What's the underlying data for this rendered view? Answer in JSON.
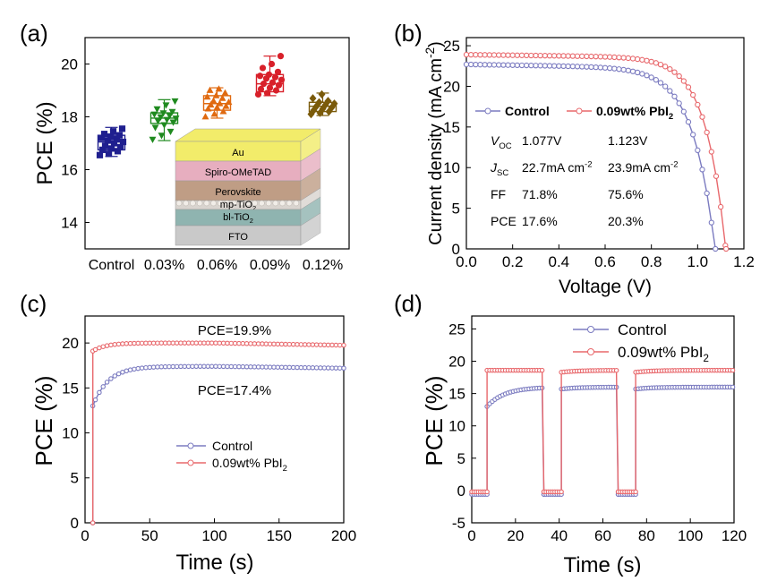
{
  "figure": {
    "panel_labels": [
      "(a)",
      "(b)",
      "(c)",
      "(d)"
    ]
  },
  "chart_data": [
    {
      "panel": "(a)",
      "type": "box",
      "ylabel": "PCE (%)",
      "xlabel": "",
      "ylim": [
        13,
        21
      ],
      "yticks": [
        14,
        16,
        18,
        20
      ],
      "categories": [
        "Control",
        "0.03%",
        "0.06%",
        "0.09%",
        "0.12%"
      ],
      "boxes": [
        {
          "category": "Control",
          "color": "#1f1f8f",
          "marker": "square",
          "min": 16.5,
          "q1": 16.75,
          "median": 17.05,
          "q3": 17.3,
          "max": 17.6,
          "points": [
            16.55,
            16.6,
            16.7,
            16.75,
            16.8,
            16.85,
            16.9,
            17.0,
            17.05,
            17.1,
            17.15,
            17.2,
            17.25,
            17.3,
            17.35,
            17.45,
            17.55
          ]
        },
        {
          "category": "0.03%",
          "color": "#1f8a1f",
          "marker": "triangle-down",
          "min": 17.1,
          "q1": 17.75,
          "median": 17.95,
          "q3": 18.15,
          "max": 18.65,
          "points": [
            17.15,
            17.3,
            17.45,
            17.6,
            17.7,
            17.8,
            17.85,
            17.9,
            17.95,
            18.0,
            18.05,
            18.1,
            18.15,
            18.2,
            18.3,
            18.45,
            18.6
          ]
        },
        {
          "category": "0.06%",
          "color": "#e06a10",
          "marker": "triangle-up",
          "min": 17.95,
          "q1": 18.25,
          "median": 18.5,
          "q3": 18.8,
          "max": 19.1,
          "points": [
            18.0,
            18.1,
            18.2,
            18.3,
            18.35,
            18.4,
            18.45,
            18.5,
            18.55,
            18.6,
            18.7,
            18.75,
            18.8,
            18.9,
            19.0,
            19.05
          ]
        },
        {
          "category": "0.09%",
          "color": "#d8202a",
          "marker": "circle",
          "min": 18.8,
          "q1": 18.95,
          "median": 19.25,
          "q3": 19.6,
          "max": 20.3,
          "points": [
            18.85,
            18.9,
            19.0,
            19.05,
            19.1,
            19.2,
            19.25,
            19.3,
            19.4,
            19.45,
            19.5,
            19.55,
            19.6,
            19.7,
            19.85,
            20.0,
            20.3
          ]
        },
        {
          "category": "0.12%",
          "color": "#7a5a0a",
          "marker": "diamond",
          "min": 18.05,
          "q1": 18.2,
          "median": 18.4,
          "q3": 18.55,
          "max": 18.9,
          "points": [
            18.1,
            18.15,
            18.2,
            18.25,
            18.3,
            18.35,
            18.4,
            18.45,
            18.5,
            18.55,
            18.6,
            18.7,
            18.85
          ]
        }
      ],
      "inset_layers": [
        {
          "label": "Au",
          "color": "#f2ec6a"
        },
        {
          "label": "Spiro-OMeTAD",
          "color": "#e7aebf"
        },
        {
          "label": "Perovskite",
          "color": "#bf9d85"
        },
        {
          "label": "mp-TiO",
          "sub": "2",
          "color": "#d9d4cf"
        },
        {
          "label": "bl-TiO",
          "sub": "2",
          "color": "#8fb4b0"
        },
        {
          "label": "FTO",
          "color": "#c9c9c9"
        }
      ]
    },
    {
      "panel": "(b)",
      "type": "line",
      "xlabel": "Voltage (V)",
      "ylabel": "Current density (mA cm",
      "ylabel_sup": "-2",
      "ylabel_end": ")",
      "xlim": [
        0,
        1.2
      ],
      "ylim": [
        0,
        26
      ],
      "xticks": [
        0.0,
        0.2,
        0.4,
        0.6,
        0.8,
        1.0,
        1.2
      ],
      "xtick_labels": [
        "0.0",
        "0.2",
        "0.4",
        "0.6",
        "0.8",
        "1.0",
        "1.2"
      ],
      "yticks": [
        0,
        5,
        10,
        15,
        20,
        25
      ],
      "series": [
        {
          "name": "Control",
          "color": "#7b7bc0",
          "jsc": 22.7,
          "voc": 1.077,
          "shape": 10.5,
          "slope": 0.45
        },
        {
          "name": "0.09wt% PbI",
          "name_sub": "2",
          "color": "#e8686c",
          "jsc": 23.9,
          "voc": 1.123,
          "shape": 11.5,
          "slope": 0.35
        }
      ],
      "table": {
        "rows": [
          {
            "param": "V",
            "param_sub": "OC",
            "control": "1.077V",
            "treated": "1.123V"
          },
          {
            "param": "J",
            "param_sub": "SC",
            "control": "22.7mA cm",
            "control_sup": "-2",
            "treated": "23.9mA cm",
            "treated_sup": "-2"
          },
          {
            "param": "FF",
            "param_sub": "",
            "control": "71.8%",
            "treated": "75.6%"
          },
          {
            "param": "PCE",
            "param_sub": "",
            "control": "17.6%",
            "treated": "20.3%"
          }
        ]
      }
    },
    {
      "panel": "(c)",
      "type": "line",
      "xlabel": "Time (s)",
      "ylabel": "PCE (%)",
      "xlim": [
        0,
        200
      ],
      "ylim": [
        0,
        23
      ],
      "xticks": [
        0,
        50,
        100,
        150,
        200
      ],
      "yticks": [
        0,
        5,
        10,
        15,
        20
      ],
      "annotations": [
        "PCE=19.9%",
        "PCE=17.4%"
      ],
      "series": [
        {
          "name": "Control",
          "color": "#7b7bc0",
          "start": 6,
          "jump": 13.0,
          "plateau": 17.4,
          "tau": 12,
          "end": 17.2
        },
        {
          "name": "0.09wt% PbI",
          "name_sub": "2",
          "color": "#e8686c",
          "start": 6,
          "jump": 19.1,
          "plateau": 20.0,
          "tau": 10,
          "end": 19.75
        }
      ]
    },
    {
      "panel": "(d)",
      "type": "line",
      "xlabel": "Time (s)",
      "ylabel": "PCE (%)",
      "xlim": [
        0,
        120
      ],
      "ylim": [
        -5,
        27
      ],
      "xticks": [
        0,
        20,
        40,
        60,
        80,
        100,
        120
      ],
      "yticks": [
        -5,
        0,
        5,
        10,
        15,
        20,
        25
      ],
      "light_on_intervals": [
        [
          7,
          33
        ],
        [
          41,
          67
        ],
        [
          75,
          120
        ]
      ],
      "series": [
        {
          "name": "Control",
          "color": "#7b7bc0",
          "off_value": -0.6,
          "on_start": 13.0,
          "on_plateau": 16.0
        },
        {
          "name": "0.09wt% PbI",
          "name_sub": "2",
          "color": "#e8686c",
          "off_value": -0.2,
          "on_start": 18.6,
          "on_plateau": 18.6
        }
      ]
    }
  ]
}
